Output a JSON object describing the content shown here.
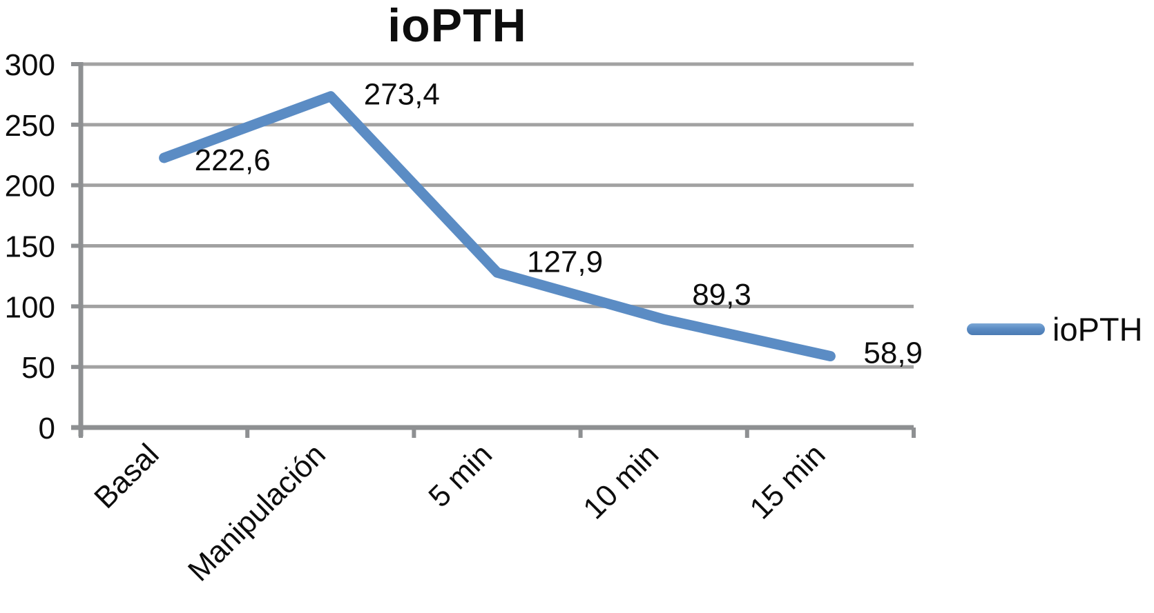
{
  "title": "ioPTH",
  "legend": {
    "label": "ioPTH",
    "position": "right"
  },
  "colors": {
    "line": "#5b8cc4",
    "line_light": "#7da8d6",
    "line_dark": "#4a7ab2",
    "grid": "#a2a2a2",
    "axis": "#8e9092",
    "text": "#0d0d0d",
    "background": "#ffffff"
  },
  "chart_data": {
    "type": "line",
    "title": "ioPTH",
    "categories": [
      "Basal",
      "Manipulación",
      "5 min",
      "10 min",
      "15 min"
    ],
    "series": [
      {
        "name": "ioPTH",
        "values": [
          222.6,
          273.4,
          127.9,
          89.3,
          58.9
        ],
        "data_labels": [
          "222,6",
          "273,4",
          "127,9",
          "89,3",
          "58,9"
        ],
        "label_offsets": [
          [
            44,
            18
          ],
          [
            48,
            12
          ],
          [
            43,
            -1
          ],
          [
            41,
            -21
          ],
          [
            48,
            10
          ]
        ]
      }
    ],
    "ylim": [
      0,
      300
    ],
    "yticks": [
      0,
      50,
      100,
      150,
      200,
      250,
      300
    ],
    "ytick_labels": [
      "0",
      "50",
      "100",
      "150",
      "200",
      "250",
      "300"
    ],
    "xlabel": "",
    "ylabel": "",
    "grid": true,
    "x_label_rotation": -45,
    "decimal_separator": ",",
    "legend_position": "right"
  }
}
